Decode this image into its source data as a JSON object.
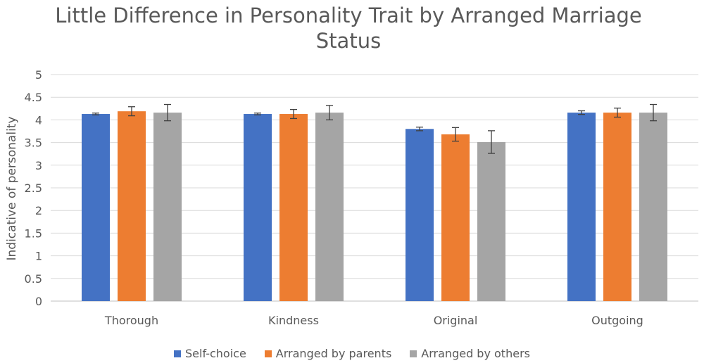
{
  "chart_data": {
    "type": "bar",
    "title_line1": "Little Difference in Personality Trait by Arranged Marriage",
    "title_line2": "Status",
    "xlabel": "",
    "ylabel": "Indicative of personality",
    "ylim": [
      0,
      5
    ],
    "yticks": [
      "0",
      "0.5",
      "1",
      "1.5",
      "2",
      "2.5",
      "3",
      "3.5",
      "4",
      "4.5",
      "5"
    ],
    "grid": true,
    "legend_position": "bottom",
    "categories": [
      "Thorough",
      "Kindness",
      "Original",
      "Outgoing"
    ],
    "series": [
      {
        "name": "Self-choice",
        "color": "#4472C4",
        "values": [
          4.13,
          4.13,
          3.8,
          4.16
        ],
        "errors": [
          0.02,
          0.02,
          0.04,
          0.04
        ]
      },
      {
        "name": "Arranged by parents",
        "color": "#ED7D31",
        "values": [
          4.19,
          4.13,
          3.68,
          4.16
        ],
        "errors": [
          0.1,
          0.1,
          0.15,
          0.1
        ]
      },
      {
        "name": "Arranged by others",
        "color": "#A5A5A5",
        "values": [
          4.16,
          4.16,
          3.51,
          4.16
        ],
        "errors": [
          0.18,
          0.16,
          0.25,
          0.18
        ]
      }
    ]
  }
}
